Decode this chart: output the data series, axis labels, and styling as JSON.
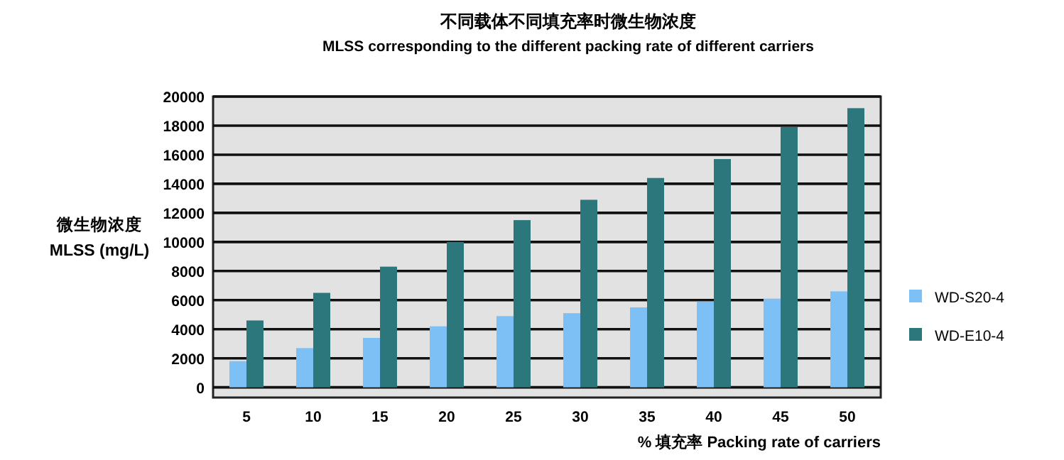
{
  "chart_data": {
    "type": "bar",
    "title": "不同载体不同填充率时微生物浓度",
    "subtitle": "MLSS corresponding to the different packing rate of different carriers",
    "ylabel": "微生物浓度\nMLSS (mg/L)",
    "xlabel": "% 填充率 Packing rate of carriers",
    "categories": [
      "5",
      "10",
      "15",
      "20",
      "25",
      "30",
      "35",
      "40",
      "45",
      "50"
    ],
    "series": [
      {
        "name": "WD-S20-4",
        "color": "#7cc0f5",
        "values": [
          1800,
          2700,
          3400,
          4200,
          4900,
          5100,
          5500,
          5900,
          6100,
          6600
        ]
      },
      {
        "name": "WD-E10-4",
        "color": "#2b777b",
        "values": [
          4600,
          6500,
          8300,
          10000,
          11500,
          12900,
          14400,
          15700,
          17900,
          19200
        ]
      }
    ],
    "ylim": [
      -700,
      20000
    ],
    "yticks": [
      0,
      2000,
      4000,
      6000,
      8000,
      10000,
      12000,
      14000,
      16000,
      18000,
      20000
    ],
    "grid": "y",
    "legend": "right"
  }
}
